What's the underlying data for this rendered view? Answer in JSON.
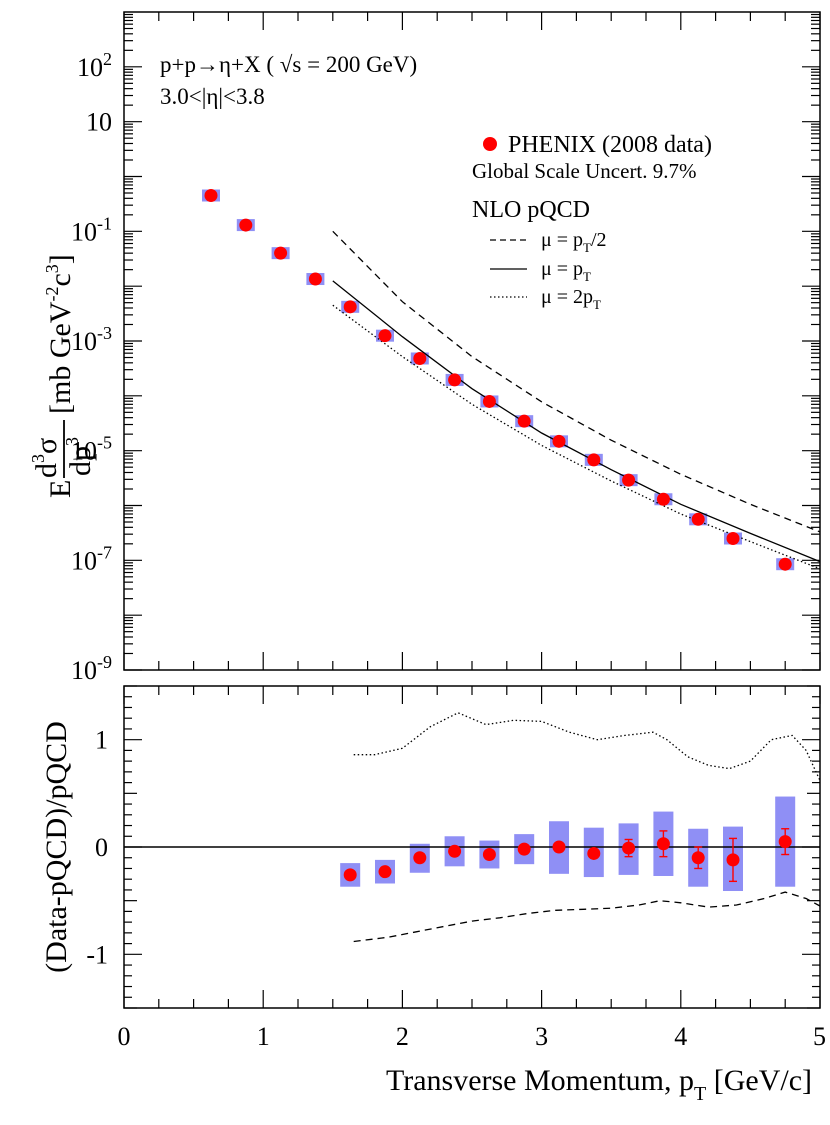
{
  "chart_data": [
    {
      "type": "scatter",
      "panel": "top",
      "title": "",
      "xlabel": "Transverse Momentum, pT [GeV/c]",
      "xlabel_main": "Transverse Momentum, p",
      "xlabel_sub": "T",
      "xlabel_unit": " [GeV/c]",
      "ylabel": "E d³σ/dp³ [mb GeV⁻²c³]",
      "ylabel_E": "E",
      "ylabel_d3": "d",
      "ylabel_sigma": "σ",
      "ylabel_dp": "dp",
      "ylabel_sup3": "3",
      "ylabel_unit_a": "[mb GeV",
      "ylabel_unit_exp": "-2",
      "ylabel_unit_b": "c",
      "ylabel_unit_c3": "3",
      "ylabel_unit_close": "]",
      "xlim": [
        0,
        5
      ],
      "ylim": [
        1e-09,
        1000
      ],
      "yscale": "log",
      "xticks": [
        "0",
        "1",
        "2",
        "3",
        "4",
        "5"
      ],
      "yticks": [
        {
          "value": 100,
          "base": "10",
          "exp": "2"
        },
        {
          "value": 10,
          "base": "10",
          "exp": ""
        },
        {
          "value": 0.1,
          "base": "10",
          "exp": "-1"
        },
        {
          "value": 0.001,
          "base": "10",
          "exp": "-3"
        },
        {
          "value": 1e-05,
          "base": "10",
          "exp": "-5"
        },
        {
          "value": 1e-07,
          "base": "10",
          "exp": "-7"
        },
        {
          "value": 1e-09,
          "base": "10",
          "exp": "-9"
        }
      ],
      "annotations": {
        "reaction": "p+p→η+X ( √s = 200 GeV)",
        "reaction_a": "p+p",
        "reaction_arrow": "→",
        "reaction_b": "η+X (",
        "reaction_sqrt": "√s",
        "reaction_c": " = 200 GeV)",
        "rapidity": "3.0<|η|<3.8",
        "rapidity_a": "3.0<",
        "rapidity_b": "|η|",
        "rapidity_c": "<3.8",
        "scale_uncert": "Global Scale Uncert. 9.7%"
      },
      "legend": {
        "placement": "top-right",
        "data_label": "PHENIX (2008 data)",
        "theory_title": "NLO pQCD",
        "mu_half": {
          "mu": "μ = p",
          "sub": "T",
          "suffix": "/2",
          "style": "dashed"
        },
        "mu_one": {
          "mu": "μ = p",
          "sub": "T",
          "suffix": "",
          "style": "solid"
        },
        "mu_two": {
          "mu": "μ = 2p",
          "sub": "T",
          "suffix": "",
          "style": "dotted"
        }
      },
      "series": [
        {
          "name": "PHENIX (2008 data)",
          "marker": "circle",
          "color": "#ff0000",
          "syst_color": "#8f8ff5",
          "x": [
            0.625,
            0.875,
            1.125,
            1.375,
            1.625,
            1.875,
            2.125,
            2.375,
            2.625,
            2.875,
            3.125,
            3.375,
            3.625,
            3.875,
            4.125,
            4.375,
            4.75
          ],
          "y": [
            0.45,
            0.13,
            0.04,
            0.0135,
            0.0042,
            0.00125,
            0.00048,
            0.000195,
            7.9e-05,
            3.45e-05,
            1.48e-05,
            6.8e-06,
            2.9e-06,
            1.3e-06,
            5.6e-07,
            2.5e-07,
            8.5e-08
          ]
        },
        {
          "name": "NLO pQCD μ = pT/2",
          "style": "dashed",
          "x": [
            1.5,
            2.0,
            2.5,
            3.0,
            3.5,
            4.0,
            4.5,
            5.0
          ],
          "y": [
            0.1,
            0.0052,
            0.00052,
            7.8e-05,
            1.55e-05,
            3.7e-06,
            1.05e-06,
            3.3e-07
          ]
        },
        {
          "name": "NLO pQCD μ = pT",
          "style": "solid",
          "x": [
            1.5,
            2.0,
            2.5,
            3.0,
            3.5,
            4.0,
            4.5,
            5.0
          ],
          "y": [
            0.0125,
            0.0012,
            0.000135,
            2.1e-05,
            4.5e-06,
            1.05e-06,
            3.1e-07,
            9.5e-08
          ]
        },
        {
          "name": "NLO pQCD μ = 2pT",
          "style": "dotted",
          "x": [
            1.5,
            2.0,
            2.5,
            3.0,
            3.5,
            4.0,
            4.5,
            5.0
          ],
          "y": [
            0.0045,
            0.00052,
            7e-05,
            1.25e-05,
            2.8e-06,
            7e-07,
            2.2e-07,
            7e-08
          ]
        }
      ]
    },
    {
      "type": "scatter",
      "panel": "bottom",
      "xlabel": "Transverse Momentum, pT [GeV/c]",
      "ylabel": "(Data-pQCD)/pQCD",
      "xlim": [
        0,
        5
      ],
      "ylim": [
        -1.5,
        1.5
      ],
      "xticks": [
        "0",
        "1",
        "2",
        "3",
        "4",
        "5"
      ],
      "yticks": [
        {
          "value": 1,
          "label": "1"
        },
        {
          "value": 0,
          "label": "0"
        },
        {
          "value": -1,
          "label": "-1"
        }
      ],
      "series": [
        {
          "name": "ratio data",
          "marker": "circle",
          "color": "#ff0000",
          "syst_color": "#8f8ff5",
          "x": [
            1.625,
            1.875,
            2.125,
            2.375,
            2.625,
            2.875,
            3.125,
            3.375,
            3.625,
            3.875,
            4.125,
            4.375,
            4.75
          ],
          "y": [
            -0.26,
            -0.23,
            -0.1,
            -0.04,
            -0.07,
            -0.02,
            0.0,
            -0.06,
            -0.01,
            0.03,
            -0.1,
            -0.12,
            0.05
          ],
          "stat_err": [
            0.0,
            0.0,
            0.0,
            0.0,
            0.0,
            0.0,
            0.0,
            0.0,
            0.08,
            0.12,
            0.1,
            0.2,
            0.12
          ],
          "syst_low": [
            -0.37,
            -0.34,
            -0.24,
            -0.18,
            -0.2,
            -0.16,
            -0.25,
            -0.28,
            -0.26,
            -0.27,
            -0.37,
            -0.41,
            -0.37
          ],
          "syst_high": [
            -0.15,
            -0.12,
            0.03,
            0.1,
            0.06,
            0.12,
            0.24,
            0.18,
            0.22,
            0.33,
            0.17,
            0.19,
            0.47
          ]
        },
        {
          "name": "μ = 2pT ratio",
          "style": "dotted",
          "x": [
            1.65,
            1.8,
            2.0,
            2.2,
            2.4,
            2.6,
            2.8,
            3.0,
            3.2,
            3.4,
            3.6,
            3.8,
            3.9,
            4.05,
            4.2,
            4.35,
            4.5,
            4.65,
            4.8,
            4.9,
            5.0
          ],
          "y": [
            0.86,
            0.86,
            0.92,
            1.12,
            1.25,
            1.14,
            1.18,
            1.17,
            1.07,
            1.0,
            1.04,
            1.07,
            1.0,
            0.84,
            0.76,
            0.73,
            0.8,
            1.0,
            1.04,
            0.9,
            0.62
          ]
        },
        {
          "name": "μ = pT/2 ratio",
          "style": "dashed",
          "x": [
            1.65,
            1.9,
            2.1,
            2.3,
            2.5,
            2.7,
            2.9,
            3.1,
            3.3,
            3.5,
            3.7,
            3.85,
            4.0,
            4.2,
            4.4,
            4.6,
            4.75,
            4.9,
            5.0
          ],
          "y": [
            -0.88,
            -0.84,
            -0.79,
            -0.74,
            -0.69,
            -0.66,
            -0.62,
            -0.59,
            -0.58,
            -0.57,
            -0.54,
            -0.5,
            -0.52,
            -0.56,
            -0.54,
            -0.48,
            -0.42,
            -0.48,
            -0.55
          ]
        }
      ]
    }
  ]
}
